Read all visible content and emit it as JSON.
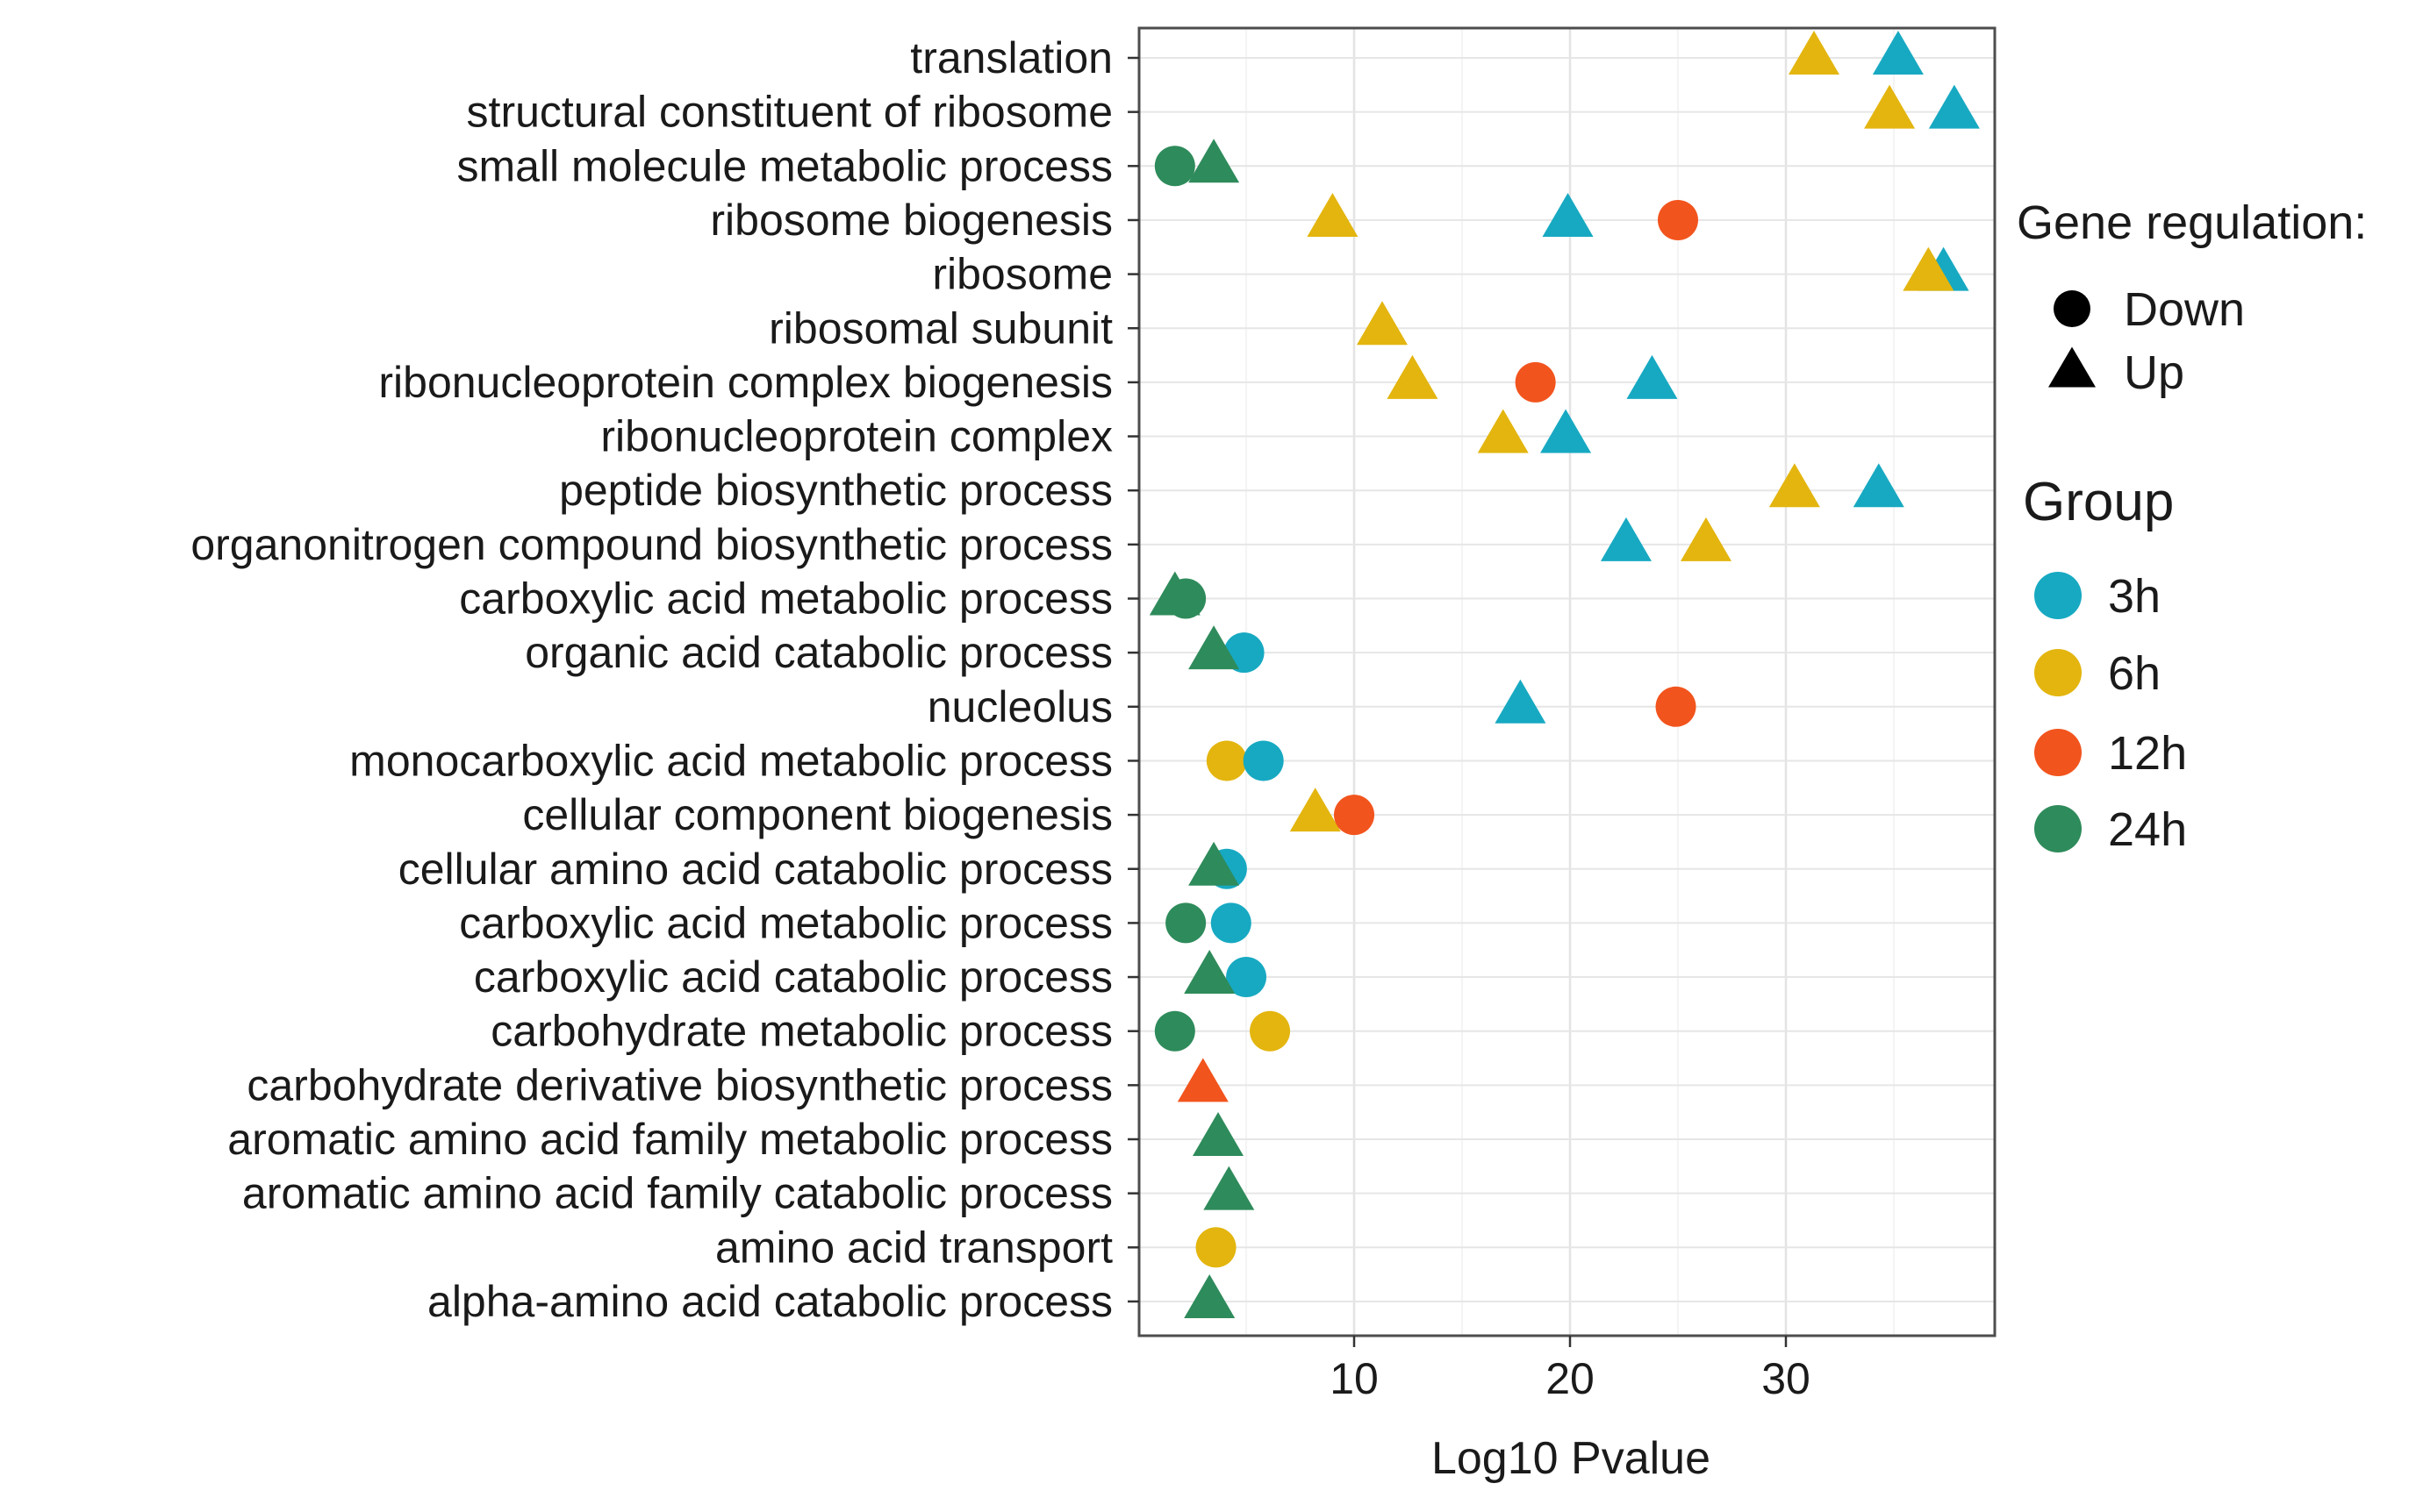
{
  "chart_data": {
    "type": "scatter",
    "title": "",
    "xlabel": "Log10 Pvalue",
    "ylabel": "",
    "xlim": [
      0.5,
      40
    ],
    "x_ticks": [
      10,
      20,
      30
    ],
    "x_tick_labels": [
      "10",
      "20",
      "30"
    ],
    "grid": true,
    "categories": [
      "translation",
      "structural constituent of ribosome",
      "small molecule metabolic process",
      "ribosome biogenesis",
      "ribosome",
      "ribosomal subunit",
      "ribonucleoprotein complex biogenesis",
      "ribonucleoprotein complex",
      "peptide biosynthetic process",
      "organonitrogen compound biosynthetic process",
      "carboxylic acid metabolic process",
      "organic acid catabolic process",
      "nucleolus",
      "monocarboxylic acid metabolic process",
      "cellular component biogenesis",
      "cellular amino acid catabolic process",
      "carboxylic acid metabolic process",
      "carboxylic acid catabolic process",
      "carbohydrate metabolic process",
      "carbohydrate derivative biosynthetic process",
      "aromatic amino acid family metabolic process",
      "aromatic amino acid family catabolic process",
      "amino acid transport",
      "alpha-amino acid catabolic process"
    ],
    "groups": [
      {
        "name": "3h",
        "color": "#17a9c2"
      },
      {
        "name": "6h",
        "color": "#e3b50e"
      },
      {
        "name": "12h",
        "color": "#f2541d"
      },
      {
        "name": "24h",
        "color": "#2e8b5b"
      }
    ],
    "regulation": [
      {
        "name": "Down",
        "shape": "circle"
      },
      {
        "name": "Up",
        "shape": "triangle"
      }
    ],
    "points": [
      {
        "row": 0,
        "x": 35.2,
        "group": "3h",
        "reg": "Up"
      },
      {
        "row": 0,
        "x": 31.3,
        "group": "6h",
        "reg": "Up"
      },
      {
        "row": 1,
        "x": 34.8,
        "group": "6h",
        "reg": "Up"
      },
      {
        "row": 1,
        "x": 37.8,
        "group": "3h",
        "reg": "Up"
      },
      {
        "row": 2,
        "x": 1.7,
        "group": "24h",
        "reg": "Down"
      },
      {
        "row": 2,
        "x": 3.5,
        "group": "24h",
        "reg": "Up"
      },
      {
        "row": 3,
        "x": 9.0,
        "group": "6h",
        "reg": "Up"
      },
      {
        "row": 3,
        "x": 19.9,
        "group": "3h",
        "reg": "Up"
      },
      {
        "row": 3,
        "x": 25.0,
        "group": "12h",
        "reg": "Down"
      },
      {
        "row": 4,
        "x": 37.3,
        "group": "3h",
        "reg": "Up"
      },
      {
        "row": 4,
        "x": 36.6,
        "group": "6h",
        "reg": "Up"
      },
      {
        "row": 5,
        "x": 11.3,
        "group": "6h",
        "reg": "Up"
      },
      {
        "row": 6,
        "x": 12.7,
        "group": "6h",
        "reg": "Up"
      },
      {
        "row": 6,
        "x": 18.4,
        "group": "12h",
        "reg": "Down"
      },
      {
        "row": 6,
        "x": 23.8,
        "group": "3h",
        "reg": "Up"
      },
      {
        "row": 7,
        "x": 16.9,
        "group": "6h",
        "reg": "Up"
      },
      {
        "row": 7,
        "x": 19.8,
        "group": "3h",
        "reg": "Up"
      },
      {
        "row": 8,
        "x": 30.4,
        "group": "6h",
        "reg": "Up"
      },
      {
        "row": 8,
        "x": 34.3,
        "group": "3h",
        "reg": "Up"
      },
      {
        "row": 9,
        "x": 22.6,
        "group": "3h",
        "reg": "Up"
      },
      {
        "row": 9,
        "x": 26.3,
        "group": "6h",
        "reg": "Up"
      },
      {
        "row": 10,
        "x": 1.7,
        "group": "24h",
        "reg": "Up"
      },
      {
        "row": 10,
        "x": 2.2,
        "group": "24h",
        "reg": "Down"
      },
      {
        "row": 11,
        "x": 4.9,
        "group": "3h",
        "reg": "Down"
      },
      {
        "row": 11,
        "x": 3.5,
        "group": "24h",
        "reg": "Up"
      },
      {
        "row": 12,
        "x": 17.7,
        "group": "3h",
        "reg": "Up"
      },
      {
        "row": 12,
        "x": 24.9,
        "group": "12h",
        "reg": "Down"
      },
      {
        "row": 13,
        "x": 4.1,
        "group": "6h",
        "reg": "Down"
      },
      {
        "row": 13,
        "x": 5.8,
        "group": "3h",
        "reg": "Down"
      },
      {
        "row": 14,
        "x": 8.2,
        "group": "6h",
        "reg": "Up"
      },
      {
        "row": 14,
        "x": 10.0,
        "group": "12h",
        "reg": "Down"
      },
      {
        "row": 15,
        "x": 4.1,
        "group": "3h",
        "reg": "Down"
      },
      {
        "row": 15,
        "x": 3.5,
        "group": "24h",
        "reg": "Up"
      },
      {
        "row": 16,
        "x": 4.3,
        "group": "3h",
        "reg": "Down"
      },
      {
        "row": 16,
        "x": 2.2,
        "group": "24h",
        "reg": "Down"
      },
      {
        "row": 17,
        "x": 5.0,
        "group": "3h",
        "reg": "Down"
      },
      {
        "row": 17,
        "x": 3.3,
        "group": "24h",
        "reg": "Up"
      },
      {
        "row": 18,
        "x": 6.1,
        "group": "6h",
        "reg": "Down"
      },
      {
        "row": 18,
        "x": 1.7,
        "group": "24h",
        "reg": "Down"
      },
      {
        "row": 19,
        "x": 3.0,
        "group": "12h",
        "reg": "Up"
      },
      {
        "row": 20,
        "x": 3.7,
        "group": "24h",
        "reg": "Up"
      },
      {
        "row": 21,
        "x": 4.2,
        "group": "24h",
        "reg": "Up"
      },
      {
        "row": 22,
        "x": 3.6,
        "group": "6h",
        "reg": "Down"
      },
      {
        "row": 23,
        "x": 3.3,
        "group": "24h",
        "reg": "Up"
      }
    ]
  },
  "legend": {
    "regulation_title": "Gene regulation:",
    "group_title": "Group"
  }
}
